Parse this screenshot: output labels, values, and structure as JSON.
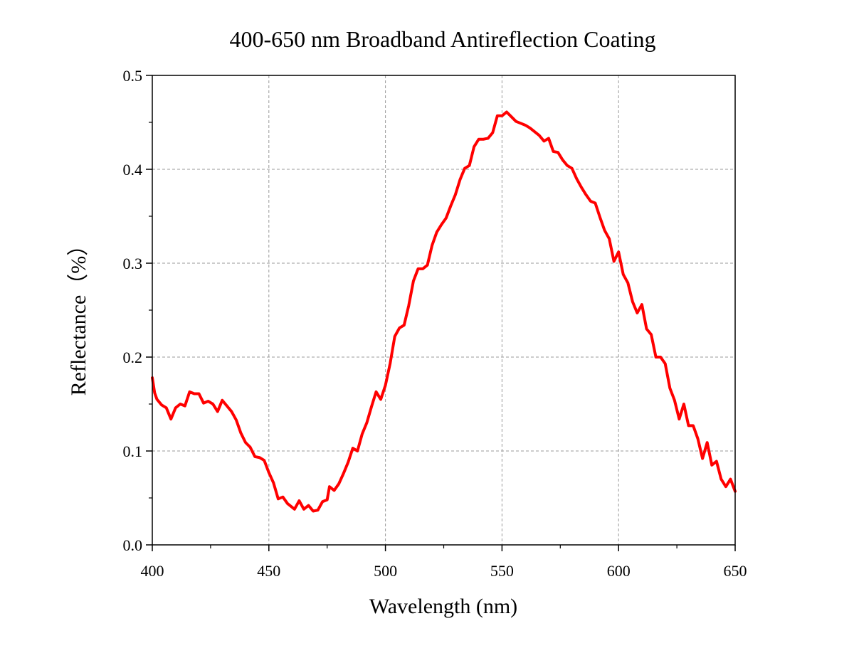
{
  "chart_data": {
    "type": "line",
    "title": "400-650 nm Broadband Antireflection Coating",
    "xlabel": "Wavelength (nm)",
    "ylabel": "Reflectance（%）",
    "xlim": [
      400,
      650
    ],
    "ylim": [
      0.0,
      0.5
    ],
    "xticks": [
      400,
      450,
      500,
      550,
      600,
      650
    ],
    "xtick_labels": [
      "400",
      "450",
      "500",
      "550",
      "600",
      "650"
    ],
    "yticks": [
      0.0,
      0.1,
      0.2,
      0.3,
      0.4,
      0.5
    ],
    "ytick_labels": [
      "0.0",
      "0.1",
      "0.2",
      "0.3",
      "0.4",
      "0.5"
    ],
    "grid": true,
    "legend": "none",
    "series": [
      {
        "color": "#ff0000",
        "x": [
          400,
          401,
          402,
          404,
          406,
          407,
          408,
          410,
          412,
          414,
          416,
          418,
          420,
          422,
          424,
          426,
          428,
          430,
          432,
          434,
          436,
          438,
          440,
          442,
          444,
          446,
          448,
          450,
          452,
          454,
          456,
          458,
          461,
          463,
          465,
          467,
          469,
          471,
          473,
          475,
          476,
          478,
          480,
          482,
          484,
          486,
          488,
          490,
          492,
          494,
          496,
          498,
          500,
          502,
          504,
          506,
          508,
          510,
          512,
          514,
          516,
          518,
          520,
          522,
          524,
          526,
          528,
          530,
          532,
          534,
          536,
          538,
          540,
          542,
          544,
          546,
          548,
          550,
          552,
          554,
          556,
          558,
          560,
          562,
          564,
          566,
          568,
          570,
          572,
          574,
          576,
          578,
          580,
          582,
          584,
          586,
          588,
          590,
          592,
          594,
          596,
          598,
          600,
          602,
          604,
          606,
          608,
          610,
          612,
          614,
          616,
          618,
          620,
          622,
          624,
          626,
          628,
          630,
          632,
          634,
          636,
          638,
          640,
          642,
          644,
          646,
          648,
          650
        ],
        "y": [
          0.178,
          0.162,
          0.155,
          0.149,
          0.146,
          0.14,
          0.134,
          0.146,
          0.15,
          0.148,
          0.163,
          0.161,
          0.161,
          0.151,
          0.153,
          0.15,
          0.142,
          0.154,
          0.148,
          0.142,
          0.133,
          0.119,
          0.109,
          0.104,
          0.094,
          0.093,
          0.09,
          0.077,
          0.066,
          0.049,
          0.051,
          0.044,
          0.038,
          0.047,
          0.038,
          0.042,
          0.036,
          0.037,
          0.046,
          0.048,
          0.062,
          0.058,
          0.065,
          0.076,
          0.088,
          0.103,
          0.1,
          0.118,
          0.13,
          0.147,
          0.163,
          0.155,
          0.17,
          0.193,
          0.222,
          0.231,
          0.234,
          0.255,
          0.281,
          0.294,
          0.294,
          0.298,
          0.319,
          0.333,
          0.341,
          0.348,
          0.361,
          0.373,
          0.389,
          0.401,
          0.404,
          0.424,
          0.432,
          0.432,
          0.433,
          0.439,
          0.457,
          0.457,
          0.461,
          0.456,
          0.451,
          0.449,
          0.447,
          0.444,
          0.44,
          0.436,
          0.43,
          0.433,
          0.419,
          0.418,
          0.41,
          0.404,
          0.401,
          0.39,
          0.381,
          0.373,
          0.366,
          0.364,
          0.349,
          0.335,
          0.326,
          0.302,
          0.312,
          0.288,
          0.279,
          0.259,
          0.247,
          0.256,
          0.23,
          0.224,
          0.2,
          0.2,
          0.193,
          0.167,
          0.154,
          0.134,
          0.15,
          0.127,
          0.127,
          0.113,
          0.092,
          0.109,
          0.085,
          0.089,
          0.07,
          0.062,
          0.07,
          0.057
        ]
      }
    ]
  }
}
